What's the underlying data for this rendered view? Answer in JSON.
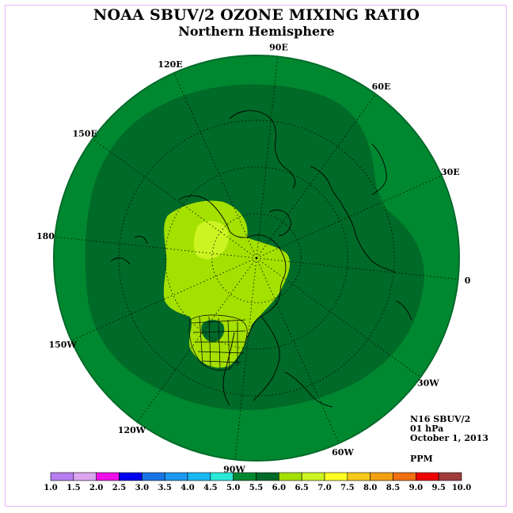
{
  "title": "NOAA SBUV/2 OZONE MIXING RATIO",
  "subtitle": "Northern Hemisphere",
  "info": {
    "satellite": "N16 SBUV/2",
    "level": "01 hPa",
    "date": "October 1, 2013",
    "units": "PPM"
  },
  "longitude_labels": [
    "90E",
    "60E",
    "30E",
    "0",
    "30W",
    "60W",
    "90W",
    "120W",
    "150W",
    "180",
    "150E",
    "120E"
  ],
  "colorbar": {
    "ticks": [
      "1.0",
      "1.5",
      "2.0",
      "2.5",
      "3.0",
      "3.5",
      "4.0",
      "4.5",
      "5.0",
      "5.5",
      "6.0",
      "6.5",
      "7.0",
      "7.5",
      "8.0",
      "8.5",
      "9.0",
      "9.5",
      "10.0"
    ],
    "colors": [
      "#b77ef1",
      "#dca6f1",
      "#ee10e6",
      "#0000ee",
      "#1a74e6",
      "#1c98f0",
      "#18b8f2",
      "#2be8d8",
      "#008830",
      "#006a28",
      "#a4e000",
      "#ccf422",
      "#ffff22",
      "#f6c81a",
      "#f2a010",
      "#f07012",
      "#ee0000",
      "#a03c3c"
    ]
  },
  "map_colors": {
    "outer": "#008830",
    "inner": "#006a28",
    "high": "#a4e000",
    "peak": "#ccf422"
  }
}
